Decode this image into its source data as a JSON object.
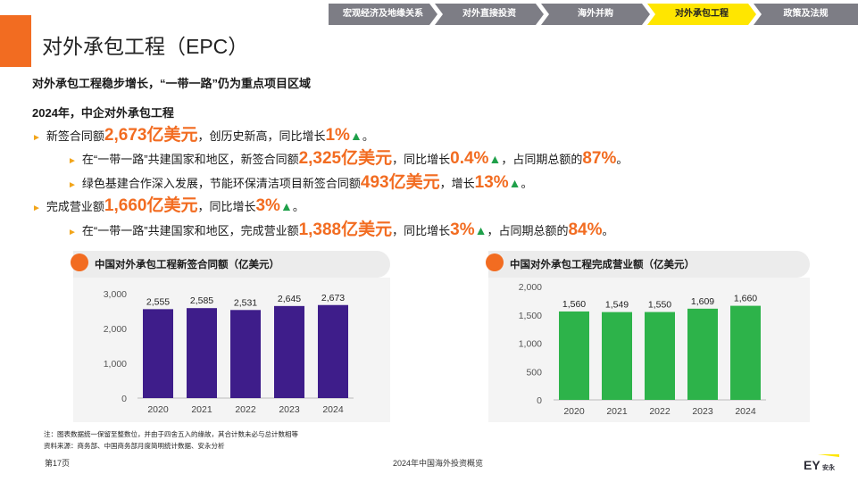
{
  "nav": {
    "tabs": [
      {
        "label": "宏观经济及地缘关系",
        "active": false
      },
      {
        "label": "对外直接投资",
        "active": false
      },
      {
        "label": "海外并购",
        "active": false
      },
      {
        "label": "对外承包工程",
        "active": true
      },
      {
        "label": "政策及法规",
        "active": false
      }
    ]
  },
  "page": {
    "title": "对外承包工程（EPC）",
    "subtitle": "对外承包工程稳步增长，“一带一路”仍为重点项目区域",
    "intro": "2024年，中企对外承包工程"
  },
  "bullets": {
    "b1": {
      "t1": "新签合同额",
      "v1": "2,673亿美元",
      "t2": "，创历史新高，同比增长",
      "v2": "1%",
      "arrow": "▲",
      "t3": "。"
    },
    "b1a": {
      "t1": "在“一带一路”共建国家和地区，新签合同额",
      "v1": "2,325亿美元",
      "t2": "，同比增长",
      "v2": "0.4%",
      "arrow": "▲",
      "t3": "，占同期总额的",
      "v3": "87%",
      "t4": "。"
    },
    "b1b": {
      "t1": "绿色基建合作深入发展，节能环保清洁项目新签合同额",
      "v1": "493亿美元",
      "t2": "，增长",
      "v2": "13%",
      "arrow": "▲",
      "t3": "。"
    },
    "b2": {
      "t1": "完成营业额",
      "v1": "1,660亿美元",
      "t2": "，同比增长",
      "v2": "3%",
      "arrow": "▲",
      "t3": "。"
    },
    "b2a": {
      "t1": "在“一带一路”共建国家和地区，完成营业额",
      "v1": "1,388亿美元",
      "t2": "，同比增长",
      "v2": "3%",
      "arrow": "▲",
      "t3": "，占同期总额的",
      "v3": "84%",
      "t4": "。"
    }
  },
  "colors": {
    "orange": "#f26c21",
    "purple": "#3e1d8a",
    "green": "#2db34a",
    "tab_active": "#ffe600",
    "tab": "#7d7d85"
  },
  "chart_data": [
    {
      "type": "bar",
      "title": "中国对外承包工程新签合同额（亿美元）",
      "categories": [
        "2020",
        "2021",
        "2022",
        "2023",
        "2024"
      ],
      "values": [
        2555,
        2585,
        2531,
        2645,
        2673
      ],
      "labels": [
        "2,555",
        "2,585",
        "2,531",
        "2,645",
        "2,673"
      ],
      "yticks": [
        "0",
        "1,000",
        "2,000",
        "3,000"
      ],
      "ylim": [
        0,
        3000
      ],
      "color": "#3e1d8a",
      "grid": false
    },
    {
      "type": "bar",
      "title": "中国对外承包工程完成营业额（亿美元）",
      "categories": [
        "2020",
        "2021",
        "2022",
        "2023",
        "2024"
      ],
      "values": [
        1560,
        1549,
        1550,
        1609,
        1660
      ],
      "labels": [
        "1,560",
        "1,549",
        "1,550",
        "1,609",
        "1,660"
      ],
      "yticks": [
        "0",
        "500",
        "1,000",
        "1,500",
        "2,000"
      ],
      "ylim": [
        0,
        2000
      ],
      "color": "#2db34a",
      "grid": false
    }
  ],
  "notes": {
    "note1": "注：图表数据统一保留至整数位，并由于四舍五入的缘故，其合计数未必与总计数相等",
    "note2": "资料来源：商务部、中国商务部月度简明统计数据、安永分析"
  },
  "footer": {
    "page": "第17页",
    "center": "2024年中国海外投资概览",
    "logo": "EY",
    "logo_cn": "安永"
  }
}
